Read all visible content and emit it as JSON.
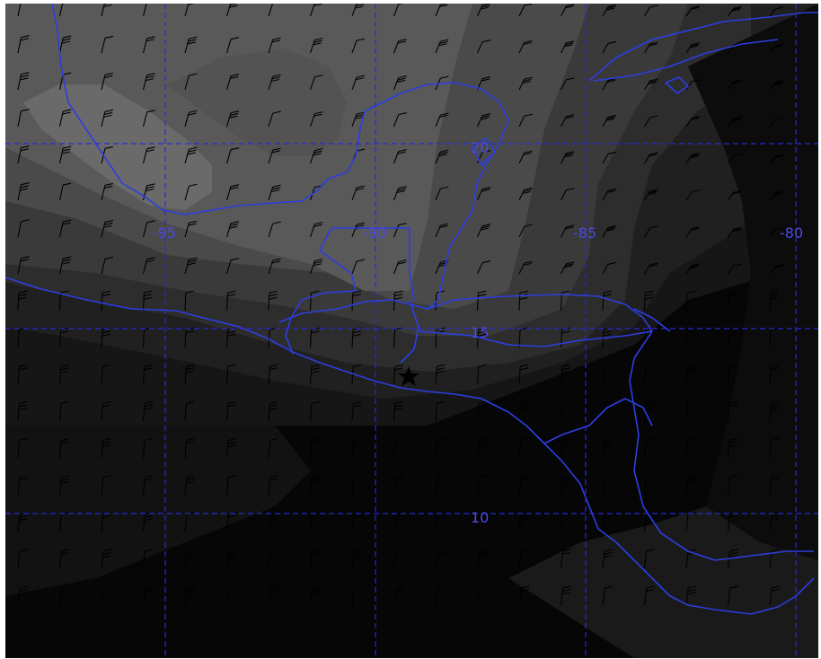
{
  "map": {
    "colors": {
      "background": "#050505",
      "gridlines": "#2a2ad6",
      "coastline": "#2d3ee0",
      "label_text": "#4a4adf",
      "wind_barbs": "#000000",
      "marker": "#000000"
    },
    "longitude_labels": [
      "-95",
      "-90",
      "-85",
      "-80"
    ],
    "latitude_labels": [
      "20",
      "15",
      "10"
    ],
    "marker_icon": "star-icon",
    "field_shading": "grayscale filled contours (darker = lower values)",
    "overlay": "wind barbs"
  }
}
